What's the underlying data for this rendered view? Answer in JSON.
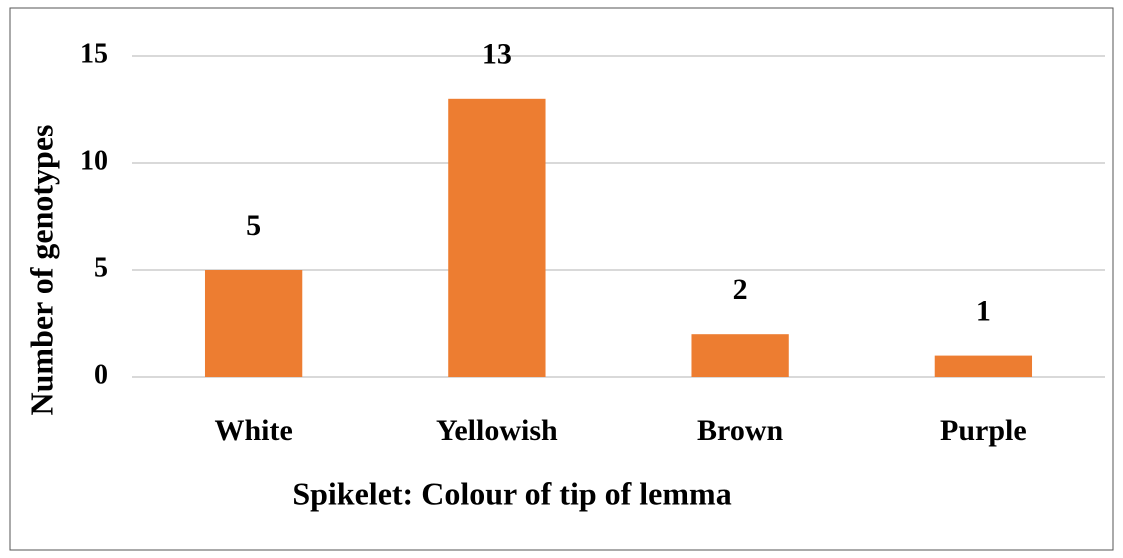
{
  "chart_data": {
    "type": "bar",
    "categories": [
      "White",
      "Yellowish",
      "Brown",
      "Purple"
    ],
    "values": [
      5,
      13,
      2,
      1
    ],
    "color": "#ed7d31",
    "xlabel": "Spikelet: Colour of tip of lemma",
    "ylabel": "Number of genotypes",
    "ylim": [
      0,
      15
    ],
    "yticks": [
      0,
      5,
      10,
      15
    ],
    "grid": true
  }
}
